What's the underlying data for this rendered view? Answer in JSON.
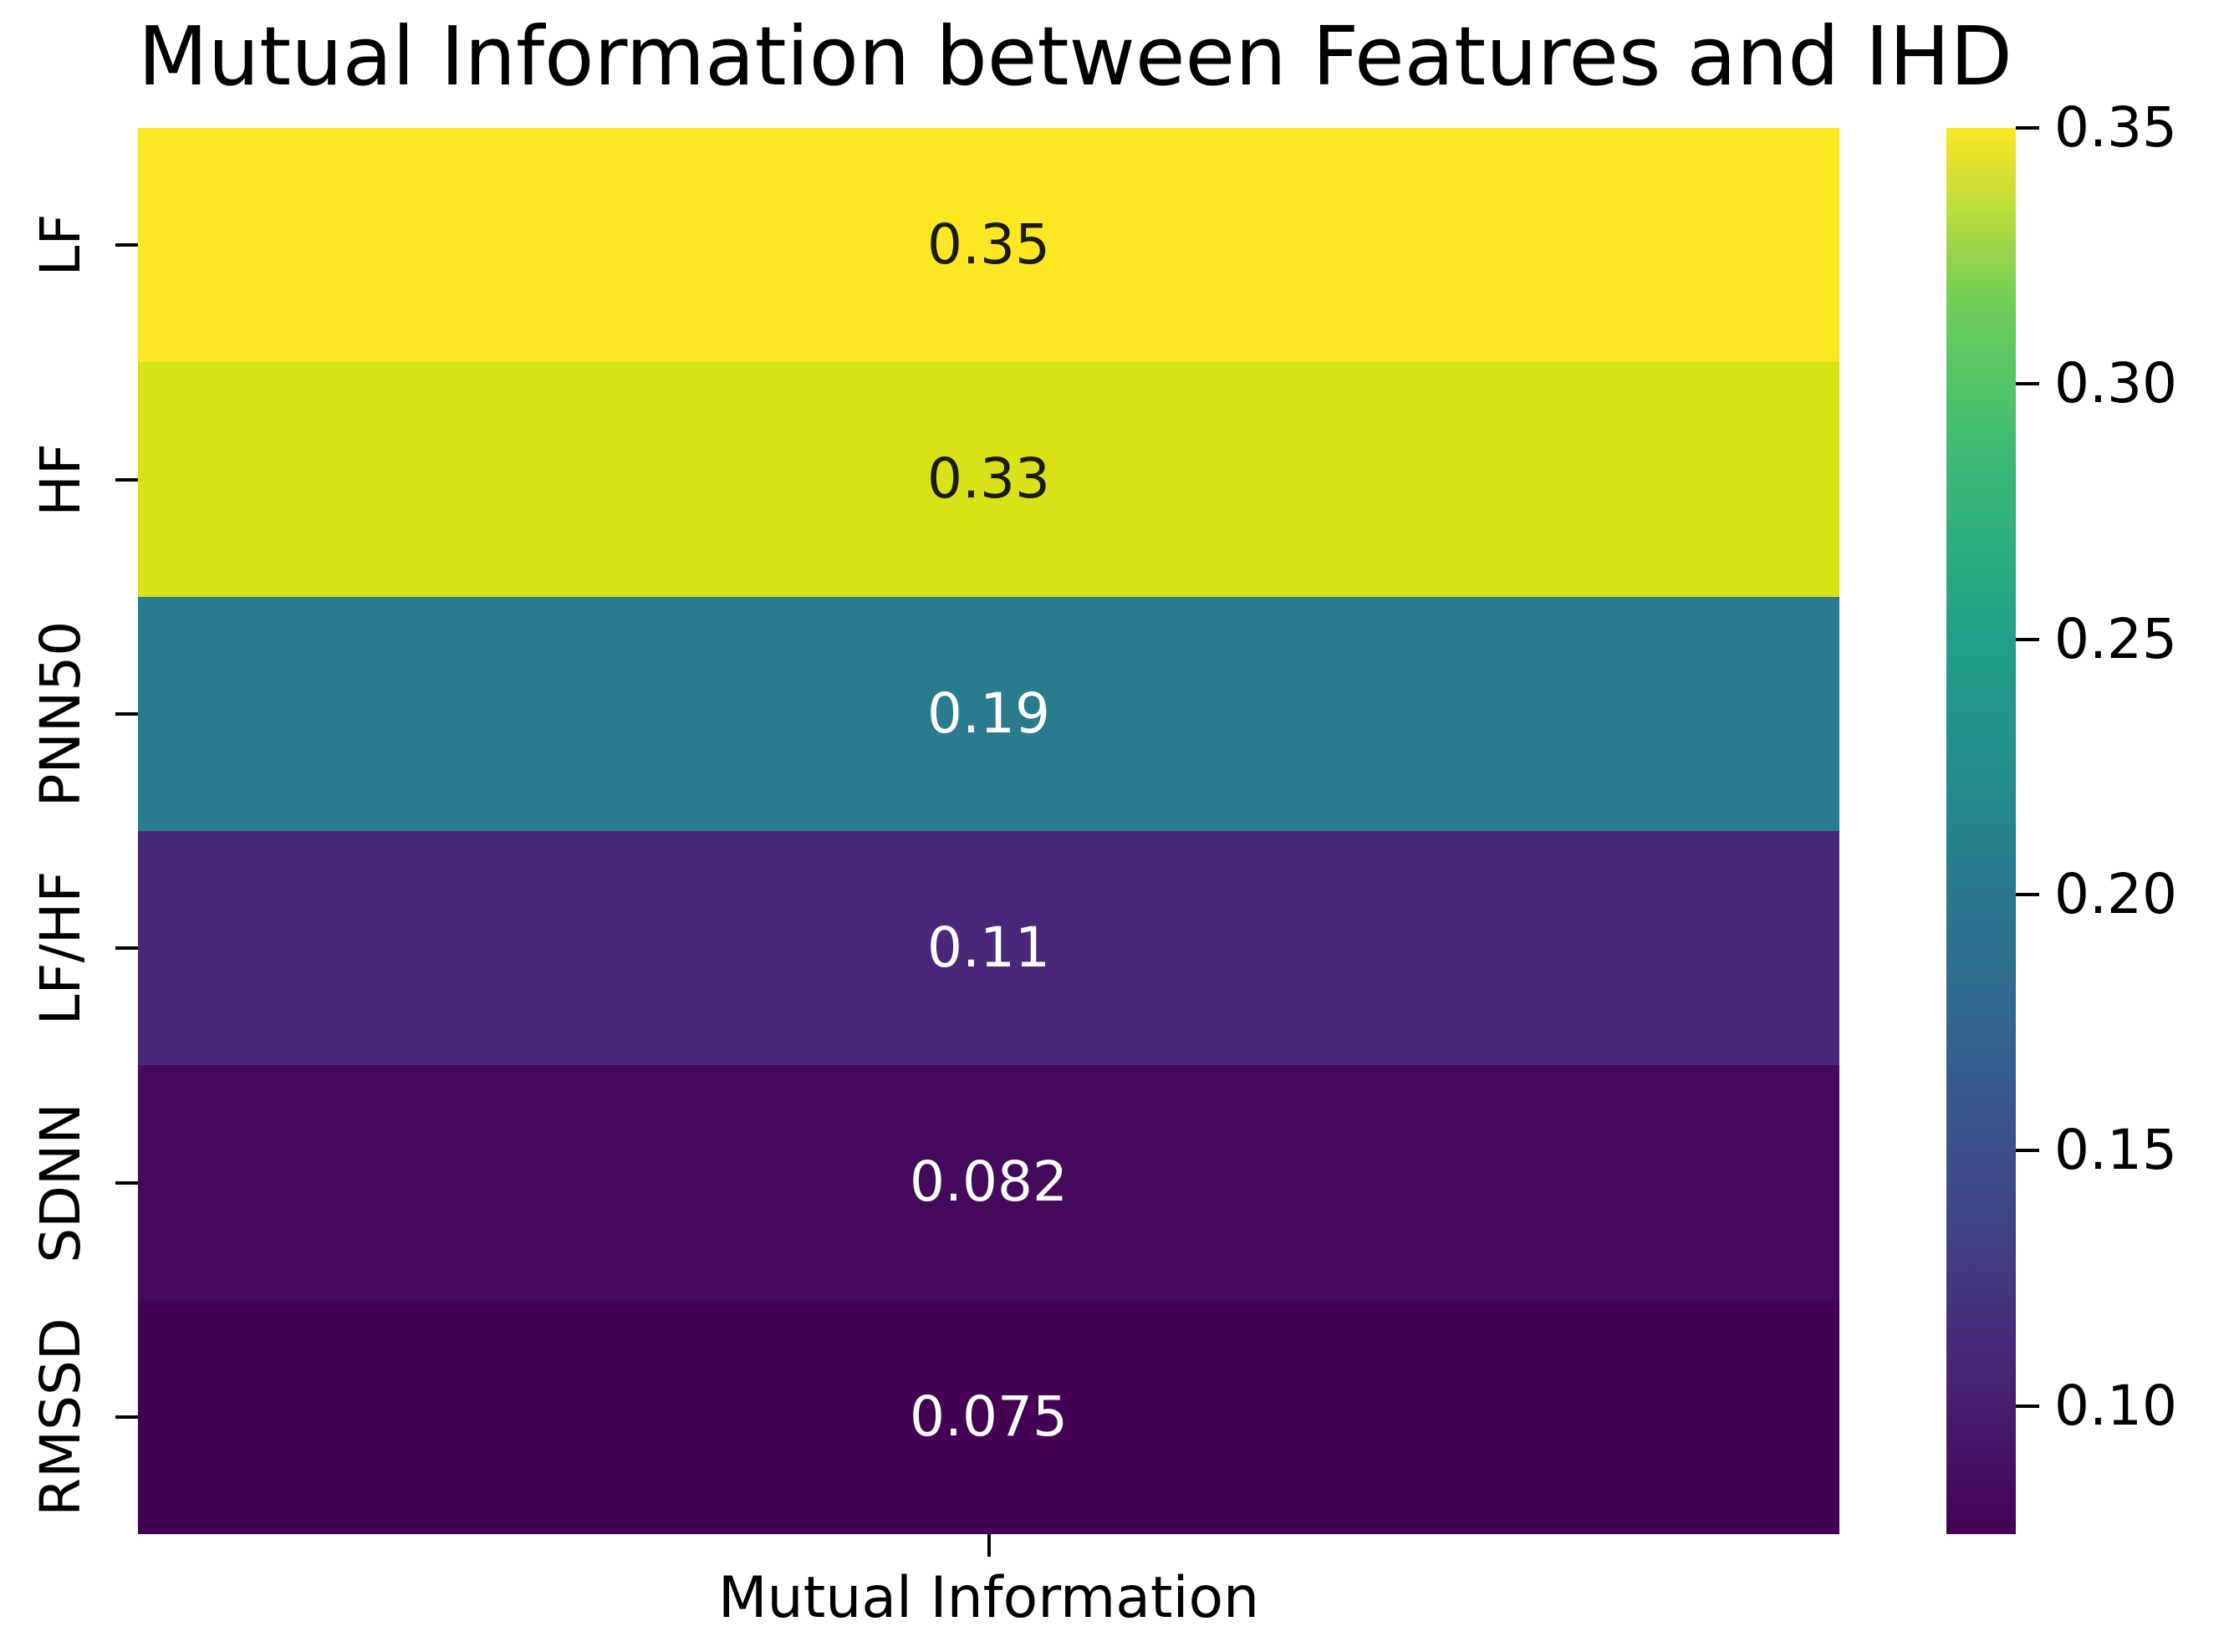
{
  "chart_data": {
    "type": "heatmap",
    "title": "Mutual Information between Features and IHD",
    "xlabel": "Mutual Information",
    "x_categories": [
      "Mutual Information"
    ],
    "colormap": "viridis",
    "rows": [
      {
        "feature": "LF",
        "value": 0.35,
        "label": "0.35",
        "color": "#fde725",
        "text_color": "#1a1a1a"
      },
      {
        "feature": "HF",
        "value": 0.33,
        "label": "0.33",
        "color": "#d8e219",
        "text_color": "#1a1a1a"
      },
      {
        "feature": "PNN50",
        "value": 0.19,
        "label": "0.19",
        "color": "#2a7b8e",
        "text_color": "#ffffff"
      },
      {
        "feature": "LF/HF",
        "value": 0.11,
        "label": "0.11",
        "color": "#482878",
        "text_color": "#ffffff"
      },
      {
        "feature": "SDNN",
        "value": 0.082,
        "label": "0.082",
        "color": "#45095b",
        "text_color": "#ffffff"
      },
      {
        "feature": "RMSSD",
        "value": 0.075,
        "label": "0.075",
        "color": "#440154",
        "text_color": "#ffffff"
      }
    ],
    "colorbar": {
      "vmin": 0.075,
      "vmax": 0.35,
      "ticks": [
        0.35,
        0.3,
        0.25,
        0.2,
        0.15,
        0.1
      ],
      "tick_labels": [
        "0.35",
        "0.30",
        "0.25",
        "0.20",
        "0.15",
        "0.10"
      ],
      "gradient_stops_bottom_to_top": [
        "#440154",
        "#482878",
        "#3e4a89",
        "#31688e",
        "#26828e",
        "#1f9e89",
        "#35b779",
        "#6ece58",
        "#fde725"
      ]
    },
    "grid": false,
    "legend": "colorbar-right"
  }
}
